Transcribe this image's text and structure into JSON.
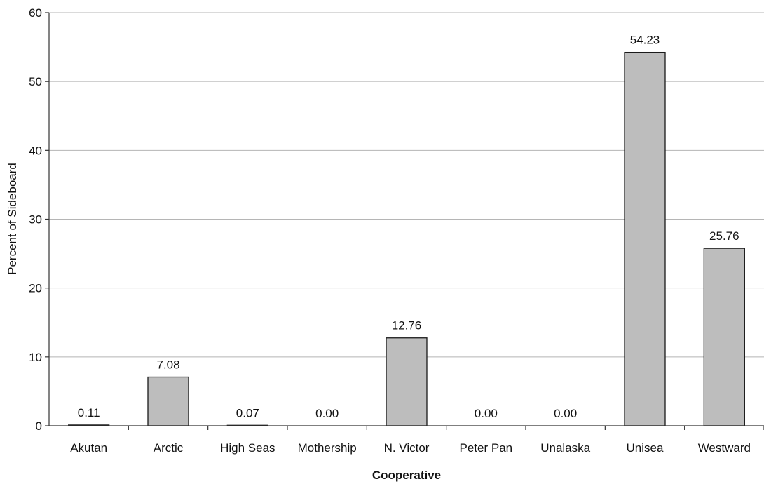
{
  "chart_data": {
    "type": "bar",
    "title": "",
    "xlabel": "Cooperative",
    "ylabel": "Percent of Sideboard",
    "categories": [
      "Akutan",
      "Arctic",
      "High Seas",
      "Mothership",
      "N. Victor",
      "Peter Pan",
      "Unalaska",
      "Unisea",
      "Westward"
    ],
    "values": [
      0.11,
      7.08,
      0.07,
      0.0,
      12.76,
      0.0,
      0.0,
      54.23,
      25.76
    ],
    "data_labels": [
      "0.11",
      "7.08",
      "0.07",
      "0.00",
      "12.76",
      "0.00",
      "0.00",
      "54.23",
      "25.76"
    ],
    "ylim": [
      0,
      60
    ],
    "yticks": [
      0,
      10,
      20,
      30,
      40,
      50,
      60
    ],
    "grid": true,
    "legend": "none",
    "colors": {
      "bar_fill": "#bdbdbd",
      "bar_stroke": "#1a1a1a",
      "grid": "#b5b5b5"
    }
  }
}
